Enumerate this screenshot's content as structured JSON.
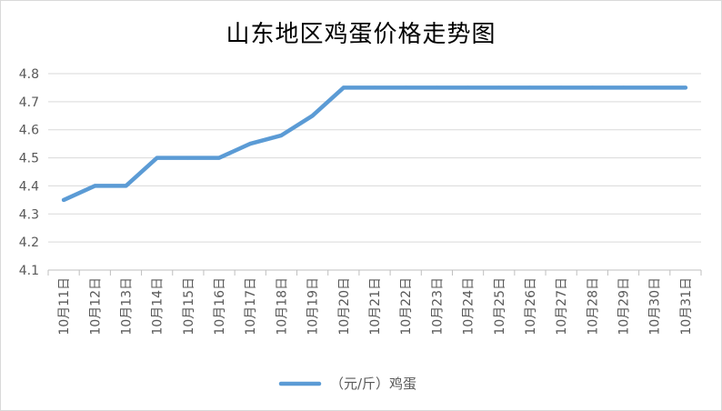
{
  "chart_data": {
    "type": "line",
    "title": "山东地区鸡蛋价格走势图",
    "xlabel": "",
    "ylabel": "",
    "categories": [
      "10月11日",
      "10月12日",
      "10月13日",
      "10月14日",
      "10月15日",
      "10月16日",
      "10月17日",
      "10月18日",
      "10月19日",
      "10月20日",
      "10月21日",
      "10月22日",
      "10月23日",
      "10月24日",
      "10月25日",
      "10月26日",
      "10月27日",
      "10月28日",
      "10月29日",
      "10月30日",
      "10月31日"
    ],
    "series": [
      {
        "name": "（元/斤）鸡蛋",
        "values": [
          4.35,
          4.4,
          4.4,
          4.5,
          4.5,
          4.5,
          4.55,
          4.58,
          4.65,
          4.75,
          4.75,
          4.75,
          4.75,
          4.75,
          4.75,
          4.75,
          4.75,
          4.75,
          4.75,
          4.75,
          4.75
        ],
        "color": "#5b9bd5"
      }
    ],
    "ylim": [
      4.1,
      4.8
    ],
    "yticks": [
      "4.1",
      "4.2",
      "4.3",
      "4.4",
      "4.5",
      "4.6",
      "4.7",
      "4.8"
    ],
    "grid": true,
    "legend_position": "bottom"
  }
}
